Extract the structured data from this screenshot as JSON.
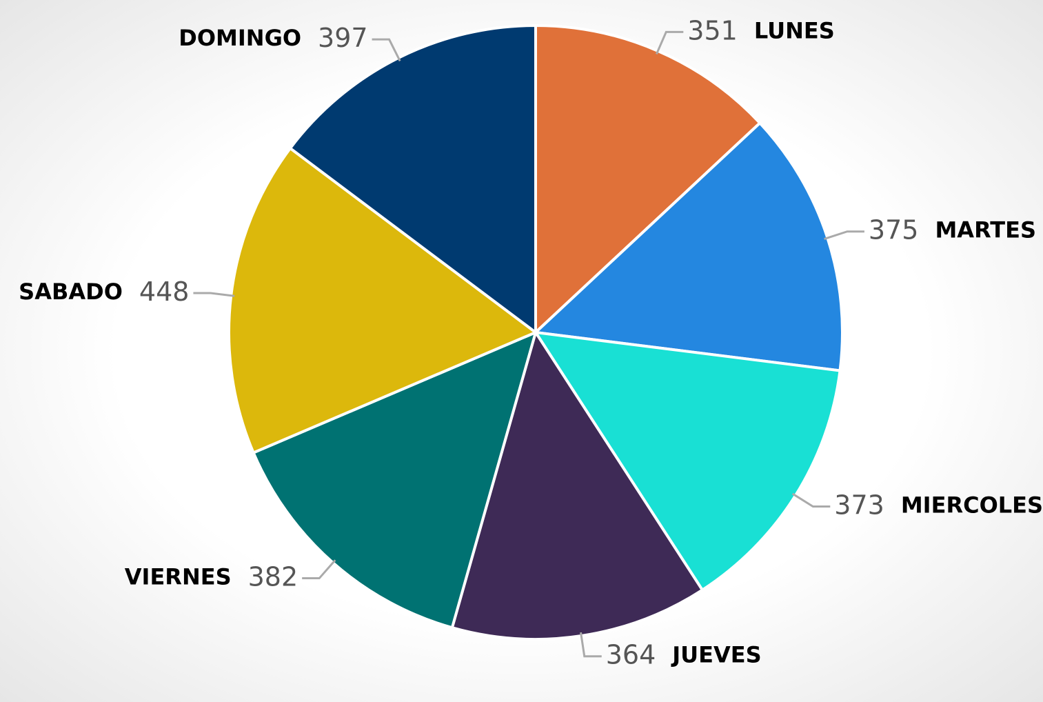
{
  "chart_data": {
    "type": "pie",
    "categories": [
      "LUNES",
      "MARTES",
      "MIERCOLES",
      "JUEVES",
      "VIERNES",
      "SABADO",
      "DOMINGO"
    ],
    "values": [
      351,
      375,
      373,
      364,
      382,
      448,
      397
    ],
    "colors": [
      "#e07139",
      "#2487e0",
      "#19e0d4",
      "#3e2a56",
      "#007272",
      "#dcb80c",
      "#003a70"
    ]
  }
}
